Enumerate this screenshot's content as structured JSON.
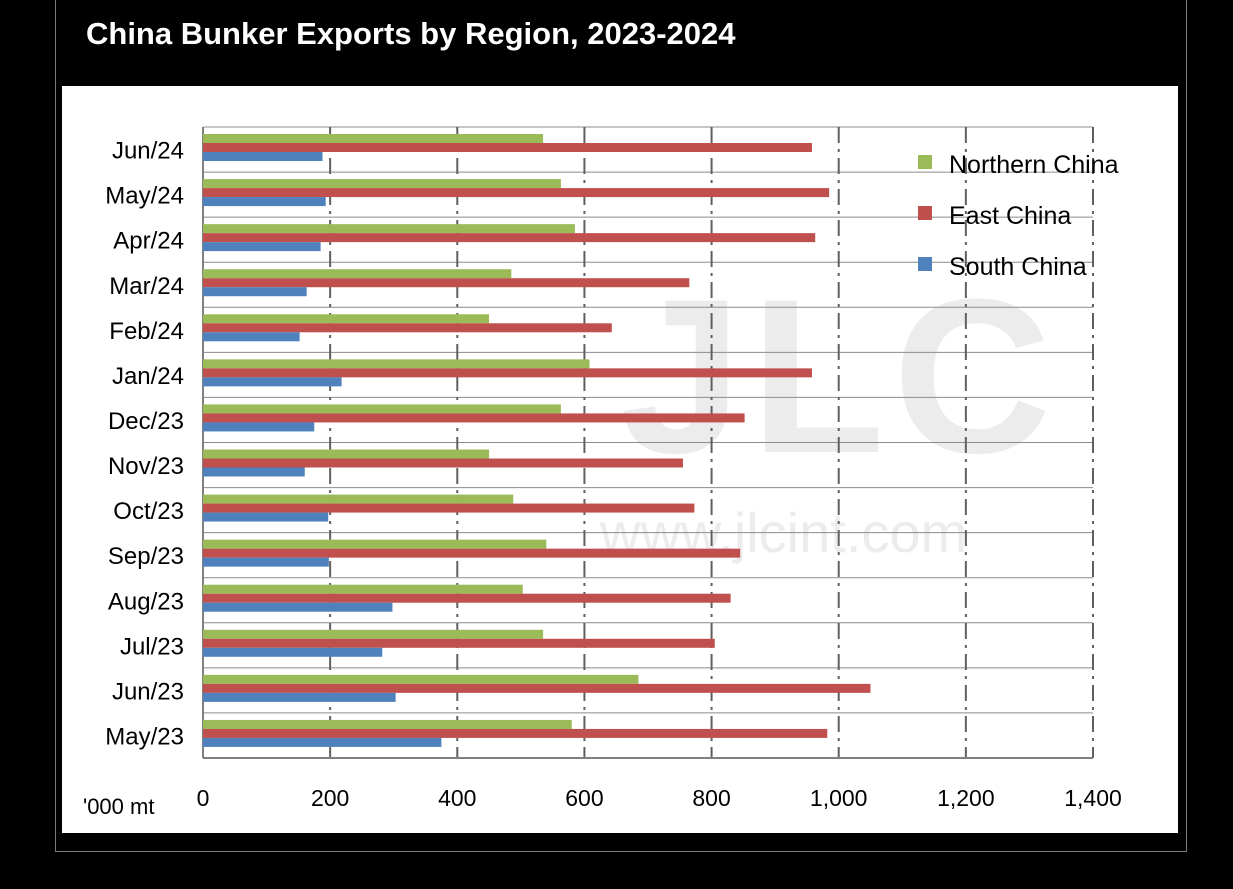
{
  "title": "China Bunker Exports by Region, 2023-2024",
  "unit_label": "'000 mt",
  "watermark": {
    "logo": "JLC",
    "url": "www.jlcint.com"
  },
  "colors": {
    "Northern China": "#9bbb59",
    "East China": "#c0504d",
    "South China": "#4f81bd"
  },
  "chart_data": {
    "type": "bar",
    "orientation": "horizontal",
    "title": "China Bunker Exports by Region, 2023-2024",
    "xlabel": "'000 mt",
    "xlim": [
      0,
      1400
    ],
    "xticks": [
      0,
      200,
      400,
      600,
      800,
      1000,
      1200,
      1400
    ],
    "xtick_labels": [
      "0",
      "200",
      "400",
      "600",
      "800",
      "1,000",
      "1,200",
      "1,400"
    ],
    "grid": "vertical dashed",
    "legend_position": "top-right",
    "categories": [
      "Jun/24",
      "May/24",
      "Apr/24",
      "Mar/24",
      "Feb/24",
      "Jan/24",
      "Dec/23",
      "Nov/23",
      "Oct/23",
      "Sep/23",
      "Aug/23",
      "Jul/23",
      "Jun/23",
      "May/23"
    ],
    "series": [
      {
        "name": "Northern China",
        "values": [
          535,
          563,
          585,
          485,
          450,
          608,
          563,
          450,
          488,
          540,
          503,
          535,
          685,
          580
        ]
      },
      {
        "name": "East China",
        "values": [
          958,
          985,
          963,
          765,
          643,
          958,
          852,
          755,
          773,
          845,
          830,
          805,
          1050,
          982
        ]
      },
      {
        "name": "South China",
        "values": [
          188,
          193,
          185,
          163,
          152,
          218,
          175,
          160,
          197,
          198,
          298,
          282,
          303,
          375
        ]
      }
    ]
  }
}
